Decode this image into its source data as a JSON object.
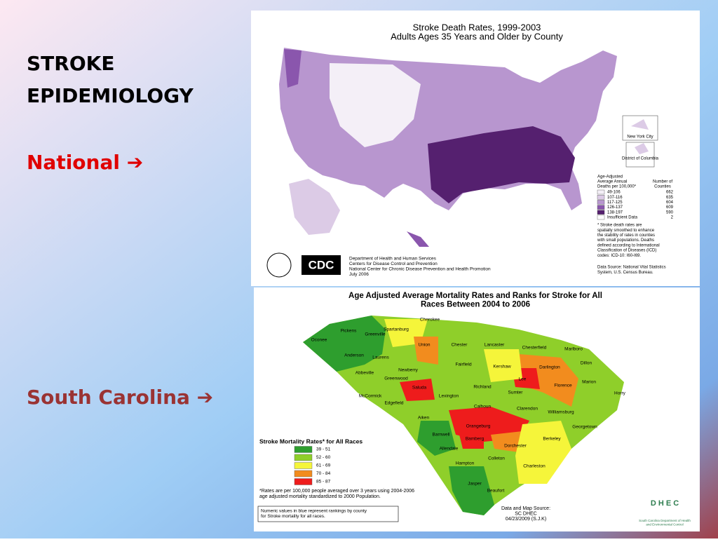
{
  "slide": {
    "title_lines": [
      "STROKE",
      "EPIDEMIOLOGY"
    ],
    "national": "National ➔",
    "south_carolina": "South Carolina ➔"
  },
  "us_map": {
    "title": "Stroke Death Rates, 1999-2003",
    "subtitle": "Adults Ages 35 Years and Older by County",
    "insets": [
      "New York City",
      "District of Columbia"
    ],
    "legend": {
      "heading": [
        "Age-Adjusted",
        "Average Annual",
        "Deaths per 100,000*"
      ],
      "count_heading": [
        "Number of",
        "Counties"
      ],
      "rows": [
        {
          "label": "49-106",
          "count": 662,
          "color": "#f4eff7"
        },
        {
          "label": "107-116",
          "count": 635,
          "color": "#dccbe6"
        },
        {
          "label": "117-125",
          "count": 604,
          "color": "#b896cf"
        },
        {
          "label": "126-137",
          "count": 609,
          "color": "#8a56ad"
        },
        {
          "label": "138-197",
          "count": 590,
          "color": "#55206f"
        },
        {
          "label": "Insufficient Data",
          "count": 2,
          "color": "#ffffff"
        }
      ]
    },
    "note": [
      "* Stroke death rates are",
      "spatially smoothed to enhance",
      "the stability of rates in counties",
      "with small populations. Deaths",
      "defined according to International",
      "Classification of Diseases (ICD)",
      "codes: ICD-10: I60-I69."
    ],
    "source": [
      "Data Source: National Vital Statistics",
      "System, U.S. Census Bureau."
    ],
    "logo": "CDC",
    "agency": [
      "Department of Health and Human Services",
      "Centers for Disease Control and Prevention",
      "National Center for Chronic Disease Prevention and Health Promotion",
      "July 2006"
    ]
  },
  "sc_map": {
    "title": [
      "Age Adjusted Average Mortality Rates and Ranks for Stroke for All",
      "Races Between 2004 to 2006"
    ],
    "counties": [
      "Cherokee",
      "Spartanburg",
      "Pickens",
      "Greenville",
      "Oconee",
      "Anderson",
      "Union",
      "Chester",
      "Lancaster",
      "Chesterfield",
      "Marlboro",
      "Laurens",
      "Fairfield",
      "Kershaw",
      "Darlington",
      "Dillon",
      "Newberry",
      "Abbeville",
      "Greenwood",
      "Saluda",
      "Richland",
      "Lee",
      "Florence",
      "Marion",
      "Horry",
      "McCormick",
      "Edgefield",
      "Lexington",
      "Sumter",
      "Aiken",
      "Calhoun",
      "Clarendon",
      "Williamsburg",
      "Orangeburg",
      "Georgetown",
      "Barnwell",
      "Bamberg",
      "Dorchester",
      "Berkeley",
      "Allendale",
      "Colleton",
      "Hampton",
      "Charleston",
      "Jasper",
      "Beaufort"
    ],
    "legend": {
      "title": "Stroke Mortality Rates* for All Races",
      "rows": [
        {
          "label": "39 - 51",
          "color": "#2e9e2e"
        },
        {
          "label": "52 - 60",
          "color": "#8fcf2a"
        },
        {
          "label": "61 - 69",
          "color": "#f5f53a"
        },
        {
          "label": "70 - 84",
          "color": "#f28c1e"
        },
        {
          "label": "85 - 87",
          "color": "#ee1c1c"
        }
      ]
    },
    "footnote": [
      "*Rates are per 100,000 people averaged over 3 years using 2004-2006",
      "age adjusted mortality standardized to 2000 Population."
    ],
    "box_note": [
      "Numeric values in blue represent rankings by county",
      "for Stroke mortality for all races."
    ],
    "source": [
      "Data and Map Source:",
      "SC DHEC",
      "04/23/2009 (S.J.K)"
    ],
    "logo": "D H E C",
    "logo_caption": [
      "South Carolina Department of Health",
      "and Environmental Control"
    ]
  }
}
